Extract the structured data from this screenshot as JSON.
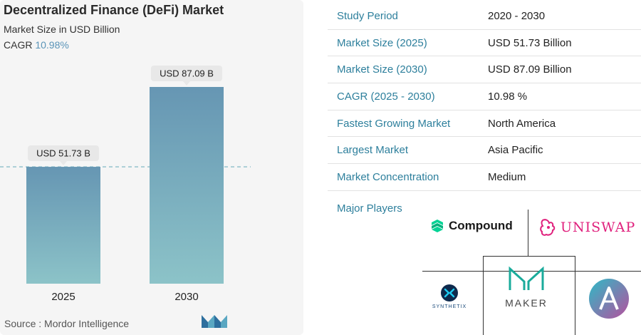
{
  "chart": {
    "title": "Decentralized Finance (DeFi) Market",
    "subtitle": "Market Size in USD Billion",
    "cagr_label": "CAGR",
    "cagr_value": "10.98%",
    "source": "Source :  Mordor Intelligence"
  },
  "chart_data": {
    "type": "bar",
    "title": "Decentralized Finance (DeFi) Market",
    "subtitle": "Market Size in USD Billion",
    "categories": [
      "2025",
      "2030"
    ],
    "values": [
      51.73,
      87.09
    ],
    "data_labels": [
      "USD 51.73 B",
      "USD 87.09 B"
    ],
    "ylabel": "",
    "xlabel": "",
    "ylim": [
      0,
      87.09
    ],
    "reference_line_value": 51.73,
    "grid": false,
    "colors": {
      "bar_top": "#6696b3",
      "bar_bottom": "#8cc3c8",
      "label_bg": "#e8e8e8",
      "reference_line": "#8cbfc9"
    }
  },
  "study": {
    "rows": [
      {
        "label": "Study Period",
        "value": "2020 - 2030"
      },
      {
        "label": "Market Size (2025)",
        "value": "USD 51.73 Billion"
      },
      {
        "label": "Market Size (2030)",
        "value": "USD 87.09 Billion"
      },
      {
        "label": "CAGR (2025 - 2030)",
        "value": "10.98 %"
      },
      {
        "label": "Fastest Growing Market",
        "value": "North America"
      },
      {
        "label": "Largest Market",
        "value": "Asia Pacific"
      },
      {
        "label": "Market Concentration",
        "value": "Medium"
      }
    ],
    "players_title": "Major Players",
    "players": {
      "compound": "Compound",
      "uniswap": "UNISWAP",
      "synthetix": "SYNTHETIX",
      "maker": "MAKER"
    }
  },
  "colors": {
    "accent_teal": "#2d7f9c",
    "cagr_blue": "#5a94b8"
  }
}
